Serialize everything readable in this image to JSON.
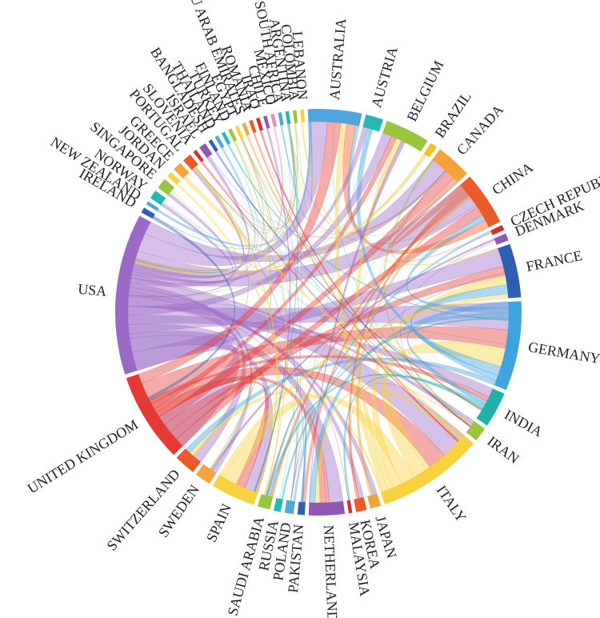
{
  "diagram": {
    "type": "chord",
    "countries": [
      {
        "name": "AUSTRALIA",
        "color": "#4ea6dc",
        "weight": 3
      },
      {
        "name": "AUSTRIA",
        "color": "#27b7b4",
        "weight": 1
      },
      {
        "name": "BELGIUM",
        "color": "#9bc53d",
        "weight": 2.5
      },
      {
        "name": "BRAZIL",
        "color": "#f2c12e",
        "weight": 0.4
      },
      {
        "name": "CANADA",
        "color": "#f4a23a",
        "weight": 2
      },
      {
        "name": "CHINA",
        "color": "#eb5b29",
        "weight": 3
      },
      {
        "name": "CZECH REPUBLIC",
        "color": "#d32f2f",
        "weight": 0.3
      },
      {
        "name": "DENMARK",
        "color": "#8e58b4",
        "weight": 0.4
      },
      {
        "name": "FRANCE",
        "color": "#2f5fb3",
        "weight": 3
      },
      {
        "name": "GERMANY",
        "color": "#3fa3df",
        "weight": 5
      },
      {
        "name": "INDIA",
        "color": "#20b2aa",
        "weight": 2
      },
      {
        "name": "IRAN",
        "color": "#9bc53d",
        "weight": 0.8
      },
      {
        "name": "ITALY",
        "color": "#f7d23e",
        "weight": 6
      },
      {
        "name": "JAPAN",
        "color": "#f4a23a",
        "weight": 0.6
      },
      {
        "name": "KOREA",
        "color": "#eb5b29",
        "weight": 0.6
      },
      {
        "name": "MALAYSIA",
        "color": "#d32f2f",
        "weight": 0.2
      },
      {
        "name": "NETHERLANDS",
        "color": "#8e58b4",
        "weight": 2
      },
      {
        "name": "PAKISTAN",
        "color": "#2f5fb3",
        "weight": 0.4
      },
      {
        "name": "POLAND",
        "color": "#4ea6dc",
        "weight": 0.5
      },
      {
        "name": "RUSSIA",
        "color": "#27b7b4",
        "weight": 0.4
      },
      {
        "name": "SAUDI ARABIA",
        "color": "#9bc53d",
        "weight": 0.7
      },
      {
        "name": "SPAIN",
        "color": "#f7d23e",
        "weight": 2.5
      },
      {
        "name": "SWEDEN",
        "color": "#f4a23a",
        "weight": 0.9
      },
      {
        "name": "SWITZERLAND",
        "color": "#eb5b29",
        "weight": 1.2
      },
      {
        "name": "UNITED KINGDOM",
        "color": "#e53935",
        "weight": 5
      },
      {
        "name": "USA",
        "color": "#9b6ac6",
        "weight": 9
      },
      {
        "name": "IRELAND",
        "color": "#2f5fb3",
        "weight": 0.3
      },
      {
        "name": "NEW ZEALAND",
        "color": "#4ea6dc",
        "weight": 0.2
      },
      {
        "name": "NORWAY",
        "color": "#27b7b4",
        "weight": 0.5
      },
      {
        "name": "SINGAPORE",
        "color": "#9bc53d",
        "weight": 0.6
      },
      {
        "name": "JORDAN",
        "color": "#f7d23e",
        "weight": 0.3
      },
      {
        "name": "GREECE",
        "color": "#f4a23a",
        "weight": 0.5
      },
      {
        "name": "PORTUGAL",
        "color": "#eb5b29",
        "weight": 0.5
      },
      {
        "name": "SLOVENIA",
        "color": "#d32f2f",
        "weight": 0.2
      },
      {
        "name": "ISRAEL",
        "color": "#8e58b4",
        "weight": 0.4
      },
      {
        "name": "BANGLADESH",
        "color": "#2f5fb3",
        "weight": 0.2
      },
      {
        "name": "THAILAND",
        "color": "#4ea6dc",
        "weight": 0.2
      },
      {
        "name": "TURKEY",
        "color": "#27b7b4",
        "weight": 0.2
      },
      {
        "name": "FINLAND",
        "color": "#9bc53d",
        "weight": 0.2
      },
      {
        "name": "EGYPT",
        "color": "#f7d23e",
        "weight": 0.2
      },
      {
        "name": "U ARAB EMIRATES",
        "color": "#f4a23a",
        "weight": 0.2
      },
      {
        "name": "ROMANIA",
        "color": "#eb5b29",
        "weight": 0.2
      },
      {
        "name": "IRAQ",
        "color": "#d32f2f",
        "weight": 0.2
      },
      {
        "name": "CHILE",
        "color": "#8e58b4",
        "weight": 0.2
      },
      {
        "name": "MEXICO",
        "color": "#e58fa8",
        "weight": 0.2
      },
      {
        "name": "SOUTH AFRICA",
        "color": "#4ea6dc",
        "weight": 0.2
      },
      {
        "name": "ARGENTINA",
        "color": "#27b7b4",
        "weight": 0.2
      },
      {
        "name": "COLOMBIA",
        "color": "#9bc53d",
        "weight": 0.2
      },
      {
        "name": "LEBANON",
        "color": "#f7d23e",
        "weight": 0.2
      }
    ],
    "links": [
      [
        "USA",
        "UNITED KINGDOM",
        4
      ],
      [
        "USA",
        "GERMANY",
        3
      ],
      [
        "USA",
        "ITALY",
        3
      ],
      [
        "USA",
        "CHINA",
        3
      ],
      [
        "USA",
        "AUSTRALIA",
        2
      ],
      [
        "USA",
        "CANADA",
        2
      ],
      [
        "USA",
        "FRANCE",
        2
      ],
      [
        "USA",
        "SPAIN",
        1.5
      ],
      [
        "USA",
        "NETHERLANDS",
        1.5
      ],
      [
        "USA",
        "INDIA",
        1
      ],
      [
        "USA",
        "BELGIUM",
        1
      ],
      [
        "USA",
        "SWITZERLAND",
        1
      ],
      [
        "USA",
        "JAPAN",
        0.5
      ],
      [
        "USA",
        "KOREA",
        0.5
      ],
      [
        "USA",
        "SWEDEN",
        0.5
      ],
      [
        "USA",
        "AUSTRIA",
        0.5
      ],
      [
        "USA",
        "IRAN",
        0.4
      ],
      [
        "USA",
        "SINGAPORE",
        0.3
      ],
      [
        "USA",
        "NORWAY",
        0.3
      ],
      [
        "USA",
        "ISRAEL",
        0.3
      ],
      [
        "USA",
        "PORTUGAL",
        0.3
      ],
      [
        "UNITED KINGDOM",
        "ITALY",
        2
      ],
      [
        "UNITED KINGDOM",
        "GERMANY",
        2
      ],
      [
        "UNITED KINGDOM",
        "AUSTRALIA",
        1.5
      ],
      [
        "UNITED KINGDOM",
        "CHINA",
        1
      ],
      [
        "UNITED KINGDOM",
        "FRANCE",
        1
      ],
      [
        "UNITED KINGDOM",
        "SPAIN",
        1
      ],
      [
        "UNITED KINGDOM",
        "CANADA",
        1
      ],
      [
        "UNITED KINGDOM",
        "NETHERLANDS",
        1
      ],
      [
        "UNITED KINGDOM",
        "BELGIUM",
        0.6
      ],
      [
        "UNITED KINGDOM",
        "INDIA",
        0.5
      ],
      [
        "ITALY",
        "GERMANY",
        2
      ],
      [
        "ITALY",
        "SPAIN",
        1.5
      ],
      [
        "ITALY",
        "FRANCE",
        1
      ],
      [
        "ITALY",
        "BELGIUM",
        0.6
      ],
      [
        "ITALY",
        "AUSTRALIA",
        0.6
      ],
      [
        "ITALY",
        "SWITZERLAND",
        0.5
      ],
      [
        "ITALY",
        "GREECE",
        0.3
      ],
      [
        "ITALY",
        "NETHERLANDS",
        0.5
      ],
      [
        "GERMANY",
        "FRANCE",
        1
      ],
      [
        "GERMANY",
        "AUSTRIA",
        0.6
      ],
      [
        "GERMANY",
        "SWITZERLAND",
        0.6
      ],
      [
        "GERMANY",
        "NETHERLANDS",
        0.6
      ],
      [
        "GERMANY",
        "CHINA",
        0.6
      ],
      [
        "GERMANY",
        "INDIA",
        0.5
      ],
      [
        "CHINA",
        "AUSTRALIA",
        1
      ],
      [
        "CHINA",
        "CANADA",
        0.6
      ],
      [
        "CHINA",
        "KOREA",
        0.3
      ],
      [
        "CHINA",
        "PAKISTAN",
        0.3
      ],
      [
        "CHINA",
        "SAUDI ARABIA",
        0.3
      ],
      [
        "AUSTRALIA",
        "CANADA",
        0.5
      ],
      [
        "AUSTRALIA",
        "NEW ZEALAND",
        0.2
      ],
      [
        "SPAIN",
        "FRANCE",
        0.6
      ],
      [
        "SPAIN",
        "PORTUGAL",
        0.3
      ],
      [
        "INDIA",
        "SAUDI ARABIA",
        0.3
      ],
      [
        "INDIA",
        "MALAYSIA",
        0.2
      ],
      [
        "PAKISTAN",
        "SAUDI ARABIA",
        0.2
      ],
      [
        "IRAN",
        "CANADA",
        0.2
      ],
      [
        "NETHERLANDS",
        "BELGIUM",
        0.4
      ],
      [
        "DENMARK",
        "SWEDEN",
        0.2
      ],
      [
        "POLAND",
        "CZECH REPUBLIC",
        0.2
      ],
      [
        "RUSSIA",
        "GERMANY",
        0.2
      ],
      [
        "BRAZIL",
        "USA",
        0.3
      ],
      [
        "JAPAN",
        "CHINA",
        0.3
      ],
      [
        "IRELAND",
        "UNITED KINGDOM",
        0.3
      ],
      [
        "JORDAN",
        "SAUDI ARABIA",
        0.1
      ],
      [
        "SLOVENIA",
        "ITALY",
        0.1
      ],
      [
        "BANGLADESH",
        "INDIA",
        0.1
      ],
      [
        "THAILAND",
        "USA",
        0.1
      ],
      [
        "TURKEY",
        "GERMANY",
        0.1
      ],
      [
        "FINLAND",
        "SWEDEN",
        0.1
      ],
      [
        "EGYPT",
        "SAUDI ARABIA",
        0.1
      ],
      [
        "U ARAB EMIRATES",
        "INDIA",
        0.1
      ],
      [
        "ROMANIA",
        "ITALY",
        0.1
      ],
      [
        "IRAQ",
        "IRAN",
        0.1
      ],
      [
        "CHILE",
        "SPAIN",
        0.1
      ],
      [
        "MEXICO",
        "USA",
        0.1
      ],
      [
        "SOUTH AFRICA",
        "AUSTRALIA",
        0.1
      ],
      [
        "ARGENTINA",
        "SPAIN",
        0.1
      ],
      [
        "COLOMBIA",
        "USA",
        0.1
      ],
      [
        "LEBANON",
        "FRANCE",
        0.1
      ]
    ]
  }
}
